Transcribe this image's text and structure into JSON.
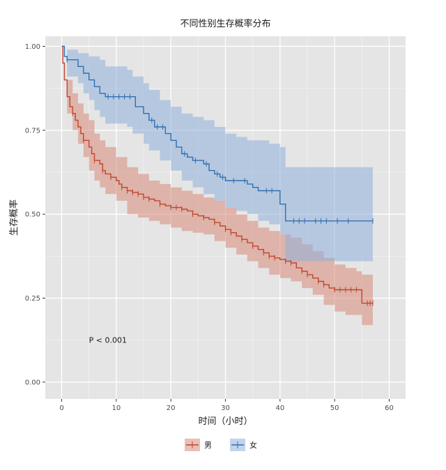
{
  "chart_data": {
    "type": "line",
    "title": "不同性别生存概率分布",
    "xlabel": "时间（小时）",
    "ylabel": "生存概率",
    "xlim": [
      -3,
      63
    ],
    "ylim": [
      -0.05,
      1.03
    ],
    "x_ticks": [
      0,
      10,
      20,
      30,
      40,
      50,
      60
    ],
    "x_tick_labels": [
      "0",
      "10",
      "20",
      "30",
      "40",
      "50",
      "60"
    ],
    "y_ticks": [
      0,
      0.25,
      0.5,
      0.75,
      1.0
    ],
    "y_tick_labels": [
      "0.00",
      "0.25",
      "0.50",
      "0.75",
      "1.00"
    ],
    "grid": true,
    "legend_position": "bottom",
    "annotation": "P < 0.001",
    "annotation_at": {
      "x": 5,
      "y": 0.125
    },
    "series": [
      {
        "name": "男",
        "color": "#c0452e",
        "fill": "#d98a78",
        "steps": [
          [
            0,
            1.0
          ],
          [
            0.2,
            0.95
          ],
          [
            0.5,
            0.9
          ],
          [
            1,
            0.85
          ],
          [
            1.5,
            0.82
          ],
          [
            2,
            0.8
          ],
          [
            2.5,
            0.78
          ],
          [
            3,
            0.76
          ],
          [
            3.5,
            0.74
          ],
          [
            4,
            0.72
          ],
          [
            5,
            0.7
          ],
          [
            5.5,
            0.68
          ],
          [
            6,
            0.66
          ],
          [
            7,
            0.65
          ],
          [
            7.5,
            0.63
          ],
          [
            8,
            0.62
          ],
          [
            9,
            0.61
          ],
          [
            10,
            0.6
          ],
          [
            10.5,
            0.59
          ],
          [
            11,
            0.58
          ],
          [
            12,
            0.57
          ],
          [
            13,
            0.565
          ],
          [
            14,
            0.56
          ],
          [
            15,
            0.55
          ],
          [
            16,
            0.545
          ],
          [
            17,
            0.54
          ],
          [
            18,
            0.53
          ],
          [
            19,
            0.525
          ],
          [
            20,
            0.52
          ],
          [
            22,
            0.515
          ],
          [
            23,
            0.51
          ],
          [
            24,
            0.5
          ],
          [
            25,
            0.495
          ],
          [
            26,
            0.49
          ],
          [
            27,
            0.485
          ],
          [
            28,
            0.475
          ],
          [
            29,
            0.465
          ],
          [
            30,
            0.455
          ],
          [
            31,
            0.445
          ],
          [
            32,
            0.435
          ],
          [
            33,
            0.425
          ],
          [
            34,
            0.415
          ],
          [
            35,
            0.405
          ],
          [
            36,
            0.395
          ],
          [
            37,
            0.385
          ],
          [
            38,
            0.375
          ],
          [
            39,
            0.37
          ],
          [
            40,
            0.365
          ],
          [
            41,
            0.36
          ],
          [
            42,
            0.355
          ],
          [
            43,
            0.34
          ],
          [
            44,
            0.33
          ],
          [
            45,
            0.32
          ],
          [
            46,
            0.31
          ],
          [
            47,
            0.3
          ],
          [
            48,
            0.29
          ],
          [
            49,
            0.28
          ],
          [
            50,
            0.275
          ],
          [
            55,
            0.235
          ],
          [
            57,
            0.235
          ]
        ],
        "upper": [
          [
            0,
            1.0
          ],
          [
            1,
            0.9
          ],
          [
            2,
            0.86
          ],
          [
            3,
            0.83
          ],
          [
            4,
            0.8
          ],
          [
            5,
            0.78
          ],
          [
            6,
            0.74
          ],
          [
            7,
            0.72
          ],
          [
            8,
            0.7
          ],
          [
            10,
            0.67
          ],
          [
            12,
            0.64
          ],
          [
            14,
            0.62
          ],
          [
            16,
            0.6
          ],
          [
            18,
            0.59
          ],
          [
            20,
            0.58
          ],
          [
            22,
            0.57
          ],
          [
            24,
            0.56
          ],
          [
            26,
            0.55
          ],
          [
            28,
            0.54
          ],
          [
            30,
            0.52
          ],
          [
            32,
            0.5
          ],
          [
            34,
            0.48
          ],
          [
            36,
            0.46
          ],
          [
            38,
            0.45
          ],
          [
            40,
            0.44
          ],
          [
            42,
            0.43
          ],
          [
            44,
            0.41
          ],
          [
            46,
            0.39
          ],
          [
            48,
            0.37
          ],
          [
            50,
            0.35
          ],
          [
            52,
            0.34
          ],
          [
            54,
            0.33
          ],
          [
            55,
            0.32
          ],
          [
            57,
            0.32
          ]
        ],
        "lower": [
          [
            0,
            1.0
          ],
          [
            1,
            0.8
          ],
          [
            2,
            0.75
          ],
          [
            3,
            0.71
          ],
          [
            4,
            0.67
          ],
          [
            5,
            0.63
          ],
          [
            6,
            0.6
          ],
          [
            7,
            0.58
          ],
          [
            8,
            0.56
          ],
          [
            10,
            0.54
          ],
          [
            12,
            0.5
          ],
          [
            14,
            0.49
          ],
          [
            16,
            0.48
          ],
          [
            18,
            0.47
          ],
          [
            20,
            0.46
          ],
          [
            22,
            0.45
          ],
          [
            24,
            0.445
          ],
          [
            26,
            0.44
          ],
          [
            28,
            0.42
          ],
          [
            30,
            0.4
          ],
          [
            32,
            0.38
          ],
          [
            34,
            0.36
          ],
          [
            36,
            0.34
          ],
          [
            38,
            0.32
          ],
          [
            40,
            0.31
          ],
          [
            42,
            0.3
          ],
          [
            44,
            0.28
          ],
          [
            46,
            0.26
          ],
          [
            48,
            0.23
          ],
          [
            50,
            0.21
          ],
          [
            52,
            0.2
          ],
          [
            54,
            0.2
          ],
          [
            55,
            0.17
          ],
          [
            57,
            0.17
          ]
        ],
        "censor_x": [
          2,
          4,
          6,
          7.5,
          9,
          11,
          12,
          13,
          14,
          15,
          16,
          18,
          20,
          21,
          22,
          24,
          26,
          28,
          30,
          31,
          33,
          35,
          37,
          38,
          39,
          41,
          42,
          44,
          45,
          47,
          48,
          50,
          51,
          52,
          53,
          54,
          56,
          56.5,
          57
        ]
      },
      {
        "name": "女",
        "color": "#2f6fb2",
        "fill": "#8fb0dc",
        "steps": [
          [
            0,
            1.0
          ],
          [
            0.5,
            0.97
          ],
          [
            1,
            0.96
          ],
          [
            2,
            0.96
          ],
          [
            3,
            0.94
          ],
          [
            4,
            0.92
          ],
          [
            5,
            0.9
          ],
          [
            6,
            0.88
          ],
          [
            7,
            0.86
          ],
          [
            8,
            0.85
          ],
          [
            13,
            0.85
          ],
          [
            13.5,
            0.82
          ],
          [
            15,
            0.8
          ],
          [
            16,
            0.78
          ],
          [
            17,
            0.76
          ],
          [
            19,
            0.74
          ],
          [
            20,
            0.72
          ],
          [
            21,
            0.7
          ],
          [
            22,
            0.68
          ],
          [
            23,
            0.67
          ],
          [
            24,
            0.66
          ],
          [
            26,
            0.65
          ],
          [
            27,
            0.63
          ],
          [
            28,
            0.62
          ],
          [
            29,
            0.61
          ],
          [
            30,
            0.6
          ],
          [
            34,
            0.59
          ],
          [
            35,
            0.58
          ],
          [
            36,
            0.57
          ],
          [
            39,
            0.57
          ],
          [
            40,
            0.53
          ],
          [
            41,
            0.48
          ],
          [
            57,
            0.48
          ]
        ],
        "upper": [
          [
            0,
            1.0
          ],
          [
            1,
            0.99
          ],
          [
            3,
            0.98
          ],
          [
            5,
            0.97
          ],
          [
            7,
            0.96
          ],
          [
            8,
            0.94
          ],
          [
            10,
            0.94
          ],
          [
            12,
            0.93
          ],
          [
            13,
            0.91
          ],
          [
            15,
            0.89
          ],
          [
            16,
            0.87
          ],
          [
            18,
            0.84
          ],
          [
            20,
            0.82
          ],
          [
            22,
            0.8
          ],
          [
            24,
            0.79
          ],
          [
            26,
            0.78
          ],
          [
            28,
            0.76
          ],
          [
            30,
            0.74
          ],
          [
            32,
            0.73
          ],
          [
            34,
            0.72
          ],
          [
            36,
            0.72
          ],
          [
            38,
            0.71
          ],
          [
            40,
            0.7
          ],
          [
            41,
            0.64
          ],
          [
            57,
            0.64
          ]
        ],
        "lower": [
          [
            0,
            1.0
          ],
          [
            1,
            0.91
          ],
          [
            3,
            0.89
          ],
          [
            4,
            0.86
          ],
          [
            5,
            0.84
          ],
          [
            6,
            0.81
          ],
          [
            7,
            0.79
          ],
          [
            8,
            0.77
          ],
          [
            10,
            0.77
          ],
          [
            12,
            0.76
          ],
          [
            13,
            0.74
          ],
          [
            15,
            0.71
          ],
          [
            16,
            0.69
          ],
          [
            18,
            0.66
          ],
          [
            20,
            0.63
          ],
          [
            22,
            0.6
          ],
          [
            24,
            0.58
          ],
          [
            26,
            0.56
          ],
          [
            28,
            0.54
          ],
          [
            30,
            0.52
          ],
          [
            32,
            0.51
          ],
          [
            34,
            0.5
          ],
          [
            36,
            0.48
          ],
          [
            38,
            0.47
          ],
          [
            40,
            0.44
          ],
          [
            41,
            0.36
          ],
          [
            57,
            0.36
          ]
        ],
        "censor_x": [
          1,
          8.5,
          9.5,
          10.5,
          11.5,
          12.5,
          16.5,
          17.5,
          18.5,
          22.5,
          24.5,
          26.5,
          28.5,
          29.5,
          31.5,
          33.5,
          37.5,
          38.5,
          42.5,
          43.5,
          44.5,
          46.5,
          47.5,
          48.5,
          50.5,
          52.5,
          57
        ]
      }
    ]
  }
}
